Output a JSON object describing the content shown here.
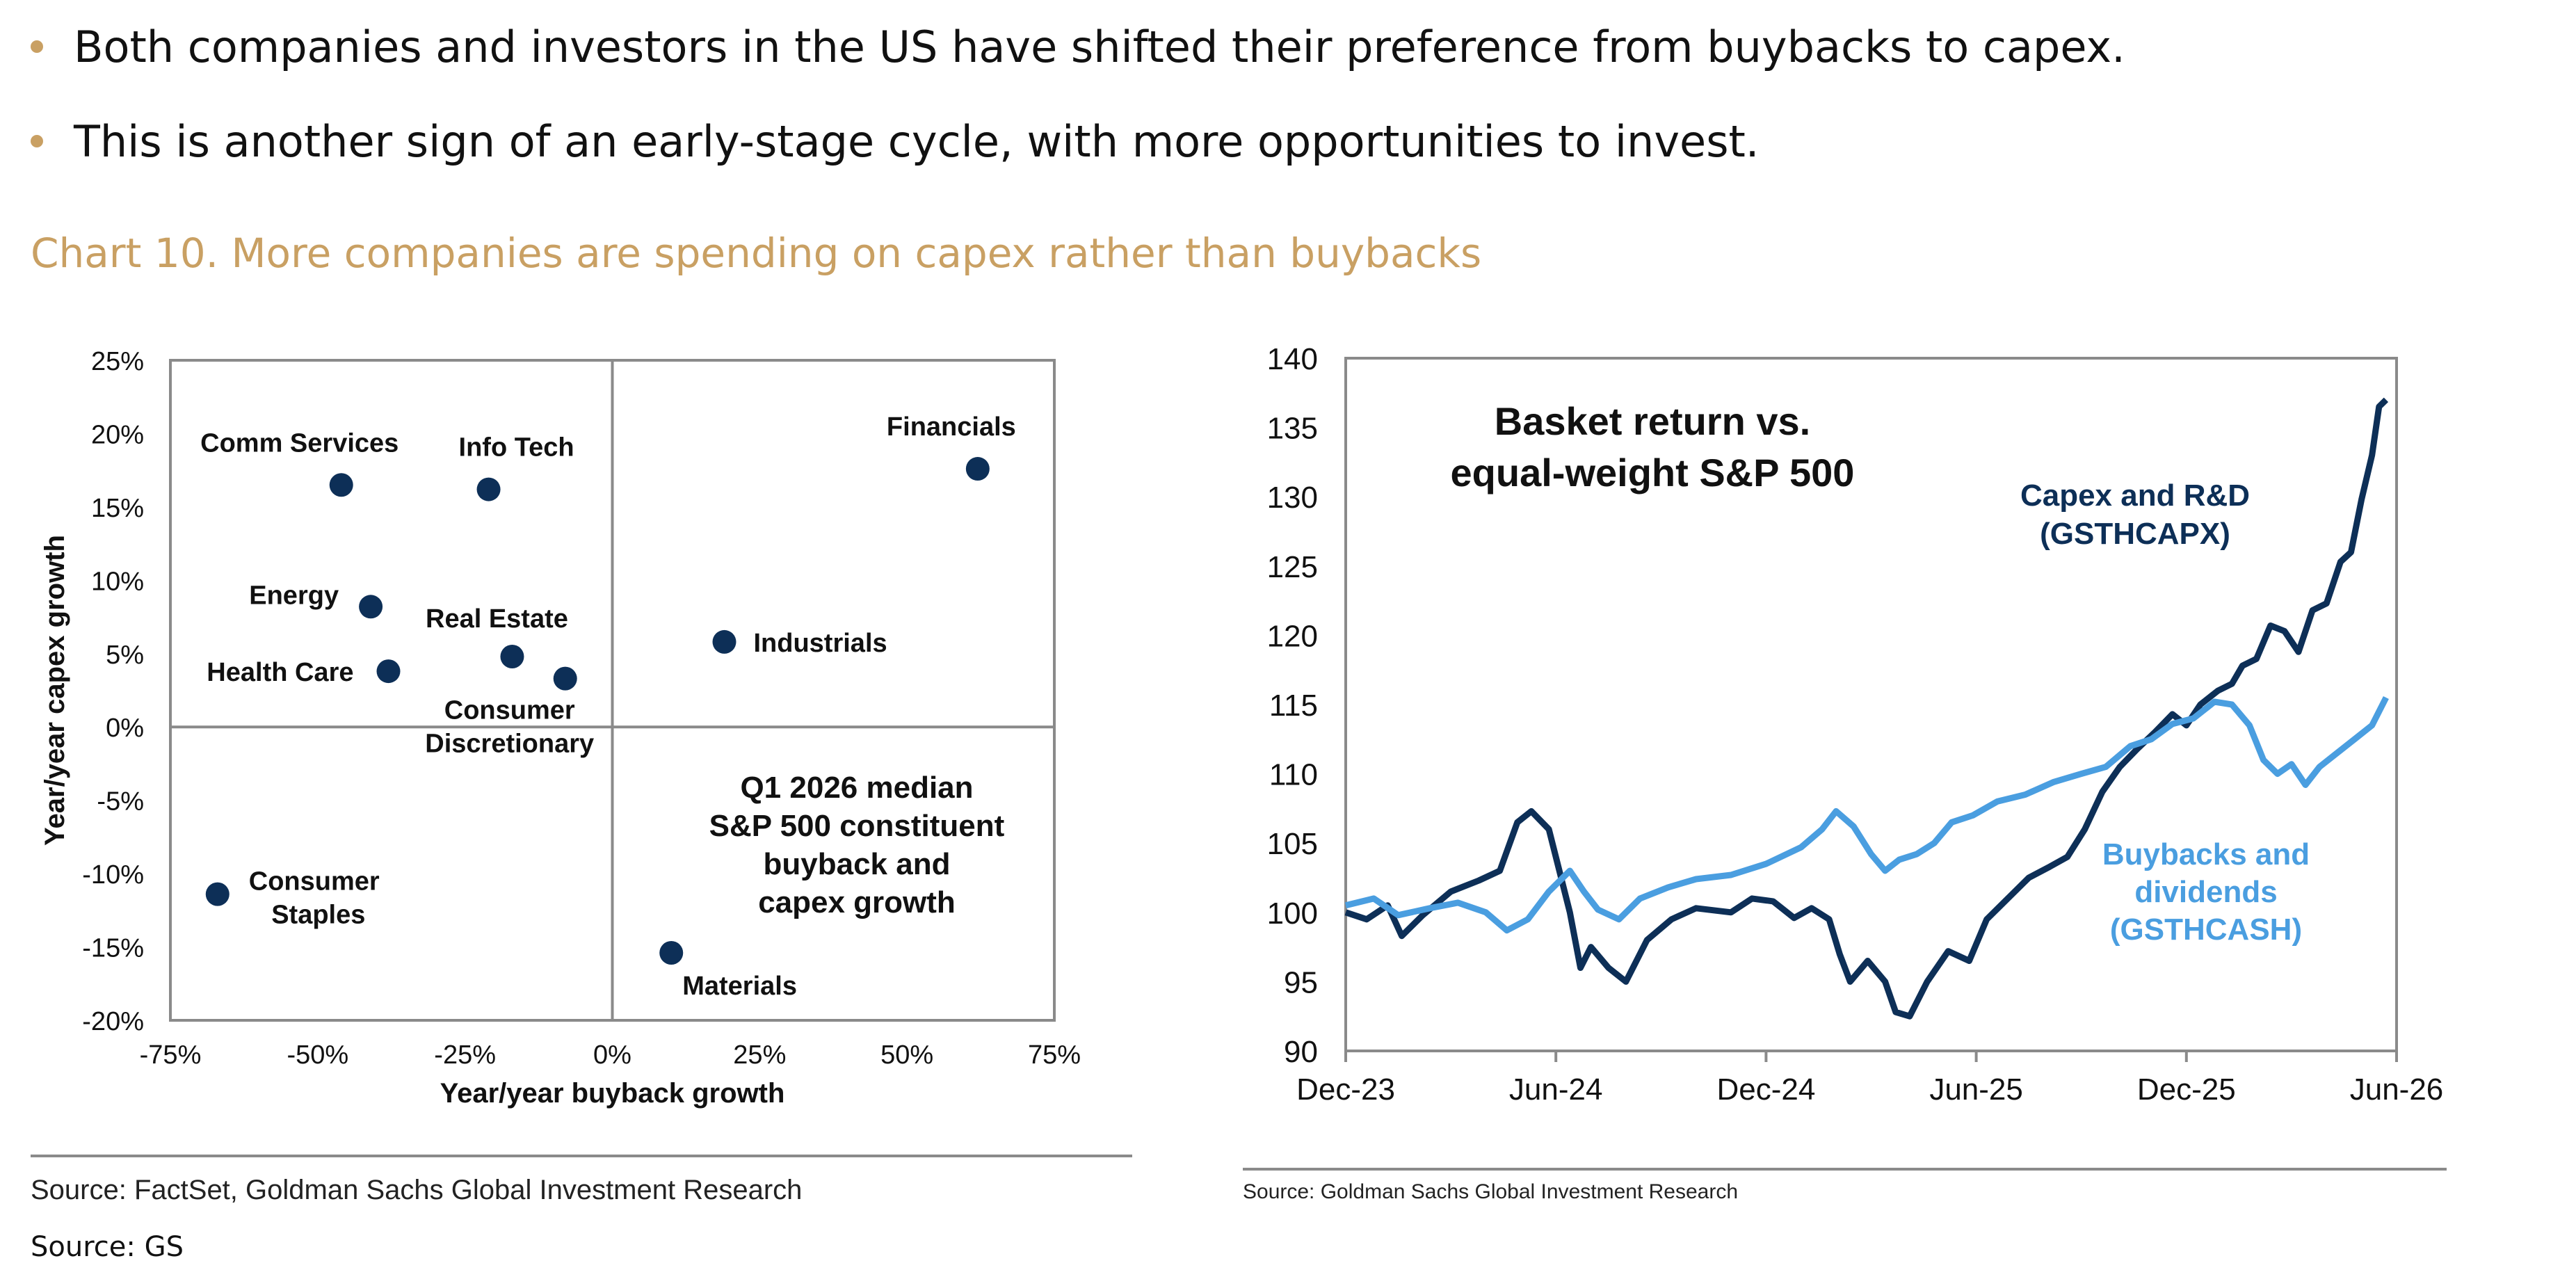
{
  "bullets": [
    "Both companies and investors in the US have shifted their preference from buybacks to capex.",
    "This is another sign of an early-stage cycle, with more opportunities to invest."
  ],
  "chart_title": "Chart 10. More companies are spending on capex rather than buybacks",
  "footer_source": "Source: GS",
  "colors": {
    "accent": "#c9a063",
    "navy": "#0d2f57",
    "light_blue": "#4a9ee0"
  },
  "chart_data": [
    {
      "type": "scatter",
      "xlabel": "Year/year buyback growth",
      "ylabel": "Year/year capex growth",
      "xlim": [
        -0.75,
        0.75
      ],
      "ylim": [
        -0.2,
        0.25
      ],
      "xticks": [
        "-75%",
        "-50%",
        "-25%",
        "0%",
        "25%",
        "50%",
        "75%"
      ],
      "yticks": [
        "25%",
        "20%",
        "15%",
        "10%",
        "5%",
        "0%",
        "-5%",
        "-10%",
        "-15%",
        "-20%"
      ],
      "points": [
        {
          "name": "Comm Services",
          "x": -0.46,
          "y": 0.165
        },
        {
          "name": "Info Tech",
          "x": -0.21,
          "y": 0.162
        },
        {
          "name": "Financials",
          "x": 0.62,
          "y": 0.176
        },
        {
          "name": "Energy",
          "x": -0.41,
          "y": 0.082
        },
        {
          "name": "Real Estate",
          "x": -0.17,
          "y": 0.048
        },
        {
          "name": "Health Care",
          "x": -0.38,
          "y": 0.038
        },
        {
          "name": "Consumer Discretionary",
          "x": -0.08,
          "y": 0.033
        },
        {
          "name": "Industrials",
          "x": 0.19,
          "y": 0.058
        },
        {
          "name": "Consumer Staples",
          "x": -0.67,
          "y": -0.114
        },
        {
          "name": "Materials",
          "x": 0.1,
          "y": -0.154
        }
      ],
      "annotation": [
        "Q1 2026 median",
        "S&P 500 constituent",
        "buyback and",
        "capex growth"
      ],
      "source": "Source: FactSet, Goldman Sachs Global Investment Research"
    },
    {
      "type": "line",
      "title": [
        "Basket return vs.",
        "equal-weight S&P 500"
      ],
      "xticks": [
        "Dec-23",
        "Jun-24",
        "Dec-24",
        "Jun-25",
        "Dec-25",
        "Jun-26"
      ],
      "yticks": [
        "140",
        "135",
        "130",
        "125",
        "120",
        "115",
        "110",
        "105",
        "100",
        "95",
        "90"
      ],
      "ylim": [
        90,
        140
      ],
      "x_months_range": [
        0,
        30
      ],
      "series": [
        {
          "name": "Capex and R&D (GSTHCAPX)",
          "label_lines": [
            "Capex and R&D",
            "(GSTHCAPX)"
          ],
          "color": "#0d2f57",
          "points": [
            [
              0,
              100
            ],
            [
              0.6,
              99.5
            ],
            [
              1.2,
              100.5
            ],
            [
              1.6,
              98.3
            ],
            [
              2.2,
              99.8
            ],
            [
              3,
              101.5
            ],
            [
              3.8,
              102.3
            ],
            [
              4.4,
              103
            ],
            [
              4.9,
              106.5
            ],
            [
              5.3,
              107.3
            ],
            [
              5.8,
              106
            ],
            [
              6.1,
              103
            ],
            [
              6.4,
              100
            ],
            [
              6.7,
              96
            ],
            [
              7,
              97.5
            ],
            [
              7.5,
              96
            ],
            [
              8,
              95
            ],
            [
              8.6,
              98
            ],
            [
              9.3,
              99.5
            ],
            [
              10,
              100.3
            ],
            [
              11,
              100
            ],
            [
              11.6,
              101
            ],
            [
              12.2,
              100.8
            ],
            [
              12.8,
              99.6
            ],
            [
              13.3,
              100.3
            ],
            [
              13.8,
              99.5
            ],
            [
              14.1,
              97
            ],
            [
              14.4,
              95
            ],
            [
              14.9,
              96.5
            ],
            [
              15.4,
              95
            ],
            [
              15.7,
              92.8
            ],
            [
              16.1,
              92.5
            ],
            [
              16.6,
              95
            ],
            [
              17.2,
              97.2
            ],
            [
              17.8,
              96.5
            ],
            [
              18.3,
              99.5
            ],
            [
              18.9,
              101
            ],
            [
              19.5,
              102.5
            ],
            [
              20.1,
              103.3
            ],
            [
              20.6,
              104
            ],
            [
              21.1,
              106
            ],
            [
              21.6,
              108.7
            ],
            [
              22.1,
              110.5
            ],
            [
              22.6,
              111.8
            ],
            [
              23.1,
              113
            ],
            [
              23.6,
              114.3
            ],
            [
              24,
              113.5
            ],
            [
              24.4,
              115
            ],
            [
              24.9,
              116
            ],
            [
              25.3,
              116.5
            ],
            [
              25.6,
              117.8
            ],
            [
              26,
              118.3
            ],
            [
              26.4,
              120.7
            ],
            [
              26.8,
              120.3
            ],
            [
              27.2,
              118.8
            ],
            [
              27.6,
              121.8
            ],
            [
              28,
              122.3
            ],
            [
              28.4,
              125.3
            ],
            [
              28.7,
              126
            ],
            [
              29,
              129.8
            ],
            [
              29.3,
              133
            ],
            [
              29.5,
              136.5
            ],
            [
              29.7,
              137
            ]
          ]
        },
        {
          "name": "Buybacks and dividends (GSTHCASH)",
          "label_lines": [
            "Buybacks and",
            "dividends",
            "(GSTHCASH)"
          ],
          "color": "#4a9ee0",
          "points": [
            [
              0,
              100.5
            ],
            [
              0.8,
              101
            ],
            [
              1.5,
              99.8
            ],
            [
              2.4,
              100.3
            ],
            [
              3.2,
              100.7
            ],
            [
              4,
              100
            ],
            [
              4.6,
              98.7
            ],
            [
              5.2,
              99.5
            ],
            [
              5.8,
              101.5
            ],
            [
              6.4,
              103
            ],
            [
              6.8,
              101.5
            ],
            [
              7.2,
              100.2
            ],
            [
              7.8,
              99.5
            ],
            [
              8.4,
              101
            ],
            [
              9.2,
              101.8
            ],
            [
              10,
              102.4
            ],
            [
              11,
              102.7
            ],
            [
              12,
              103.5
            ],
            [
              13,
              104.7
            ],
            [
              13.6,
              106
            ],
            [
              14,
              107.3
            ],
            [
              14.5,
              106.2
            ],
            [
              15,
              104.2
            ],
            [
              15.4,
              103
            ],
            [
              15.8,
              103.8
            ],
            [
              16.3,
              104.2
            ],
            [
              16.8,
              105
            ],
            [
              17.3,
              106.5
            ],
            [
              17.9,
              107
            ],
            [
              18.6,
              108
            ],
            [
              19.4,
              108.5
            ],
            [
              20.2,
              109.4
            ],
            [
              21,
              110
            ],
            [
              21.7,
              110.5
            ],
            [
              22.4,
              112
            ],
            [
              23,
              112.5
            ],
            [
              23.6,
              113.6
            ],
            [
              24.2,
              114
            ],
            [
              24.8,
              115.2
            ],
            [
              25.3,
              115
            ],
            [
              25.8,
              113.5
            ],
            [
              26.2,
              111
            ],
            [
              26.6,
              110
            ],
            [
              27,
              110.7
            ],
            [
              27.4,
              109.2
            ],
            [
              27.8,
              110.5
            ],
            [
              28.3,
              111.5
            ],
            [
              28.8,
              112.5
            ],
            [
              29.3,
              113.5
            ],
            [
              29.7,
              115.5
            ]
          ]
        }
      ],
      "source": "Source: Goldman Sachs Global Investment Research"
    }
  ]
}
